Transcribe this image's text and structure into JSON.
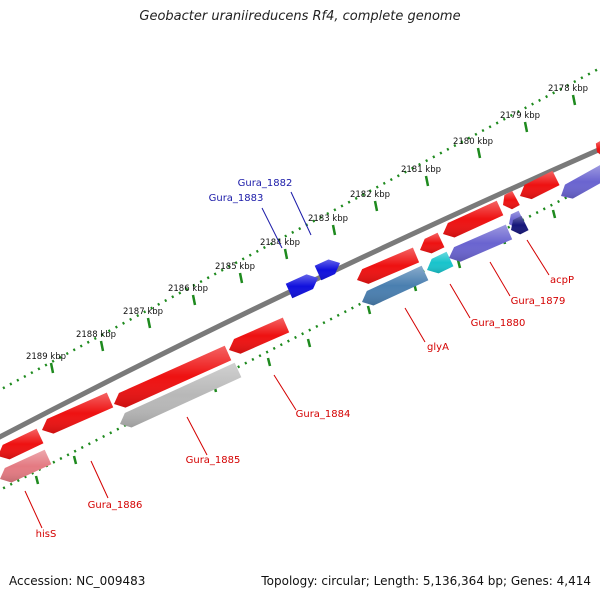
{
  "title": "Geobacter uraniireducens Rf4, complete genome",
  "footer": {
    "accession": "Accession: NC_009483",
    "topology": "Topology: circular; Length: 5,136,364 bp; Genes: 4,414"
  },
  "colors": {
    "backbone": "#7a7a7a",
    "tick": "#1e8a1e",
    "label_red": "#d40000",
    "label_blue": "#1a1aa8",
    "gene_red": "#ee1111",
    "gene_blue": "#1010dd",
    "gene_grey": "#b8b8b8",
    "gene_steel": "#4a7fb0",
    "gene_cyan": "#18c4cc",
    "gene_navy": "#16167a",
    "gene_purple": "#6a64d0",
    "gene_pink": "#e47a82"
  },
  "kbp_ticks": [
    {
      "label": "2178 kbp"
    },
    {
      "label": "2179 kbp"
    },
    {
      "label": "2180 kbp"
    },
    {
      "label": "2181 kbp"
    },
    {
      "label": "2182 kbp"
    },
    {
      "label": "2183 kbp"
    },
    {
      "label": "2184 kbp"
    },
    {
      "label": "2185 kbp"
    },
    {
      "label": "2186 kbp"
    },
    {
      "label": "2187 kbp"
    },
    {
      "label": "2188 kbp"
    },
    {
      "label": "2189 kbp"
    }
  ],
  "gene_labels": [
    {
      "name": "Gura_1882",
      "strand": "forward"
    },
    {
      "name": "Gura_1883",
      "strand": "forward"
    },
    {
      "name": "acpP",
      "strand": "reverse"
    },
    {
      "name": "Gura_1879",
      "strand": "reverse"
    },
    {
      "name": "Gura_1880",
      "strand": "reverse"
    },
    {
      "name": "glyA",
      "strand": "reverse"
    },
    {
      "name": "Gura_1884",
      "strand": "reverse"
    },
    {
      "name": "Gura_1885",
      "strand": "reverse"
    },
    {
      "name": "Gura_1886",
      "strand": "reverse"
    },
    {
      "name": "hisS",
      "strand": "reverse"
    }
  ]
}
